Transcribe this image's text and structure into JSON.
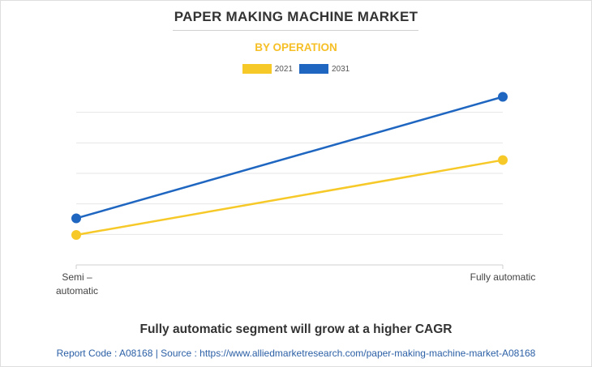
{
  "header": {
    "title": "PAPER MAKING MACHINE MARKET",
    "subtitle": "BY OPERATION"
  },
  "colors": {
    "series_2021": "#f6c928",
    "series_2031": "#1f66c1",
    "subtitle": "#f6bf26",
    "footer_text": "#2b5fa6"
  },
  "chart_data": {
    "type": "line",
    "categories": [
      "Semi –\nautomatic",
      "Fully automatic"
    ],
    "series": [
      {
        "name": "2021",
        "values": [
          0.9,
          3.15
        ]
      },
      {
        "name": "2031",
        "values": [
          1.4,
          5.05
        ]
      }
    ],
    "ylim": [
      0,
      5.5
    ],
    "grid": true,
    "legend_position": "top-center",
    "title": "",
    "xlabel": "",
    "ylabel": ""
  },
  "caption": "Fully automatic segment will grow at a higher CAGR",
  "footer": "Report Code : A08168  |  Source : https://www.alliedmarketresearch.com/paper-making-machine-market-A08168"
}
